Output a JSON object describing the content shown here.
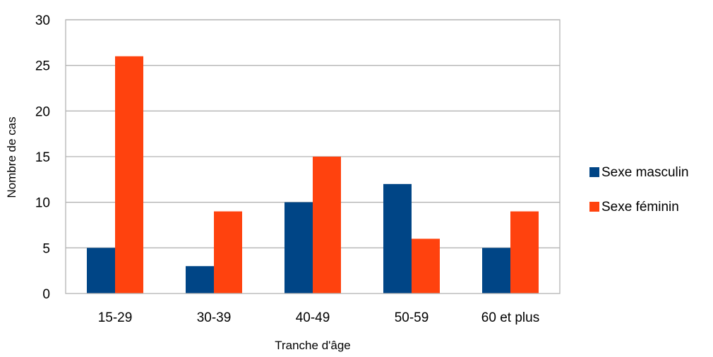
{
  "chart_data": {
    "type": "bar",
    "title": "",
    "xlabel": "Tranche d'âge",
    "ylabel": "Nombre de cas",
    "categories": [
      "15-29",
      "30-39",
      "40-49",
      "50-59",
      "60 et plus"
    ],
    "series": [
      {
        "name": "Sexe masculin",
        "color": "#004586",
        "values": [
          5,
          3,
          10,
          12,
          5
        ]
      },
      {
        "name": "Sexe féminin",
        "color": "#ff420e",
        "values": [
          26,
          9,
          15,
          6,
          9
        ]
      }
    ],
    "ylim": [
      0,
      30
    ],
    "yticks": [
      0,
      5,
      10,
      15,
      20,
      25,
      30
    ],
    "grid": true,
    "legend_position": "right"
  }
}
